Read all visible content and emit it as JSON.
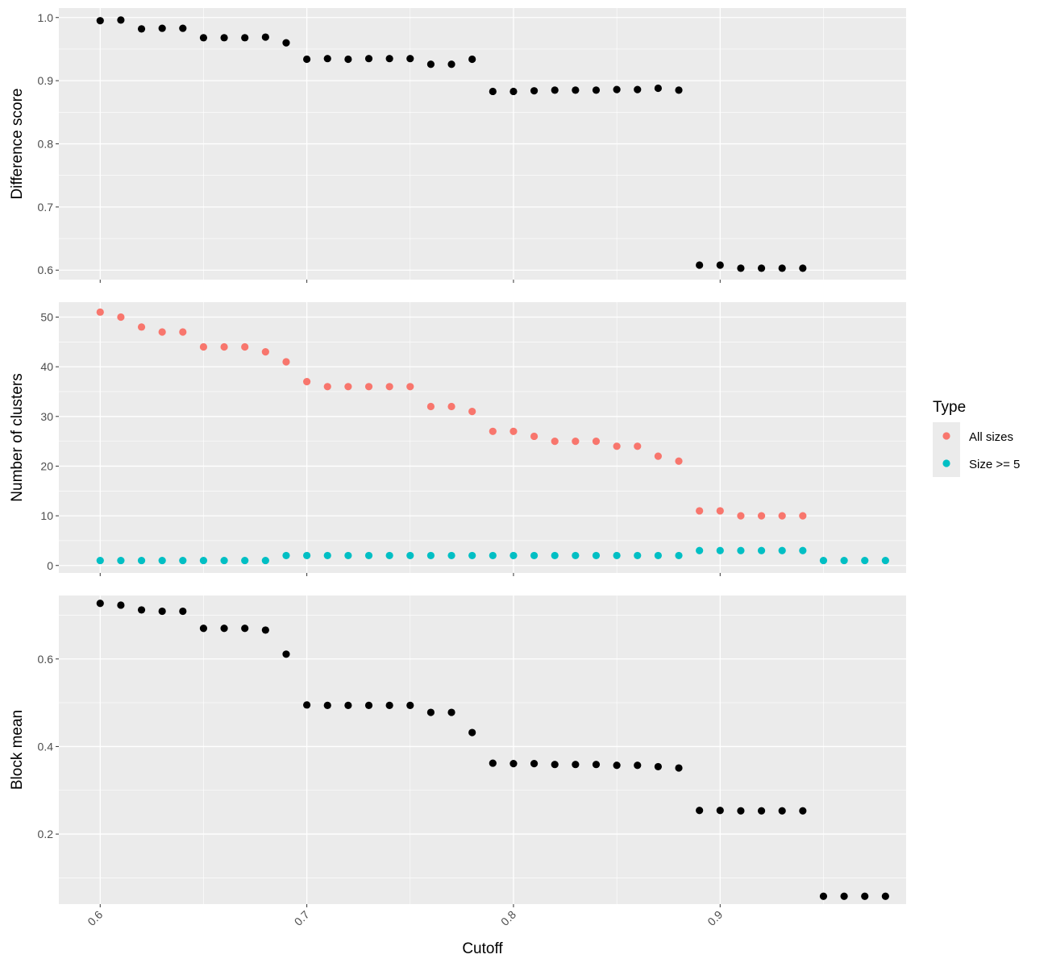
{
  "chart_data": {
    "type": "scatter",
    "xlabel": "Cutoff",
    "xlim": [
      0.58,
      0.99
    ],
    "x_ticks": [
      0.6,
      0.7,
      0.8,
      0.9
    ],
    "x_tick_labels": [
      "0.6",
      "0.7",
      "0.8",
      "0.9"
    ],
    "grid": true,
    "legend": {
      "title": "Type",
      "placement": "right",
      "entries": [
        {
          "label": "All sizes",
          "color": "#F8766D"
        },
        {
          "label": "Size >= 5",
          "color": "#00BFC4"
        }
      ]
    },
    "panels": [
      {
        "ylabel": "Difference score",
        "ylim": [
          0.585,
          1.015
        ],
        "y_ticks": [
          0.6,
          0.7,
          0.8,
          0.9,
          1.0
        ],
        "y_tick_labels": [
          "0.6",
          "0.7",
          "0.8",
          "0.9",
          "1.0"
        ],
        "series": [
          {
            "color": "#000000",
            "x": [
              0.6,
              0.61,
              0.62,
              0.63,
              0.64,
              0.65,
              0.66,
              0.67,
              0.68,
              0.69,
              0.7,
              0.71,
              0.72,
              0.73,
              0.74,
              0.75,
              0.76,
              0.77,
              0.78,
              0.79,
              0.8,
              0.81,
              0.82,
              0.83,
              0.84,
              0.85,
              0.86,
              0.87,
              0.88,
              0.89,
              0.9,
              0.91,
              0.92,
              0.93,
              0.94
            ],
            "values": [
              0.995,
              0.996,
              0.982,
              0.983,
              0.983,
              0.968,
              0.968,
              0.968,
              0.969,
              0.96,
              0.934,
              0.935,
              0.934,
              0.935,
              0.935,
              0.935,
              0.926,
              0.926,
              0.934,
              0.883,
              0.883,
              0.884,
              0.885,
              0.885,
              0.885,
              0.886,
              0.886,
              0.888,
              0.885,
              0.608,
              0.608,
              0.603,
              0.603,
              0.603,
              0.603
            ]
          }
        ]
      },
      {
        "ylabel": "Number of clusters",
        "ylim": [
          -1.5,
          53
        ],
        "y_ticks": [
          0,
          10,
          20,
          30,
          40,
          50
        ],
        "y_tick_labels": [
          "0",
          "10",
          "20",
          "30",
          "40",
          "50"
        ],
        "series": [
          {
            "name": "All sizes",
            "color": "#F8766D",
            "x": [
              0.6,
              0.61,
              0.62,
              0.63,
              0.64,
              0.65,
              0.66,
              0.67,
              0.68,
              0.69,
              0.7,
              0.71,
              0.72,
              0.73,
              0.74,
              0.75,
              0.76,
              0.77,
              0.78,
              0.79,
              0.8,
              0.81,
              0.82,
              0.83,
              0.84,
              0.85,
              0.86,
              0.87,
              0.88,
              0.89,
              0.9,
              0.91,
              0.92,
              0.93,
              0.94
            ],
            "values": [
              51,
              50,
              48,
              47,
              47,
              44,
              44,
              44,
              43,
              41,
              37,
              36,
              36,
              36,
              36,
              36,
              32,
              32,
              31,
              27,
              27,
              26,
              25,
              25,
              25,
              24,
              24,
              22,
              21,
              11,
              11,
              10,
              10,
              10,
              10
            ]
          },
          {
            "name": "Size >= 5",
            "color": "#00BFC4",
            "x": [
              0.6,
              0.61,
              0.62,
              0.63,
              0.64,
              0.65,
              0.66,
              0.67,
              0.68,
              0.69,
              0.7,
              0.71,
              0.72,
              0.73,
              0.74,
              0.75,
              0.76,
              0.77,
              0.78,
              0.79,
              0.8,
              0.81,
              0.82,
              0.83,
              0.84,
              0.85,
              0.86,
              0.87,
              0.88,
              0.89,
              0.9,
              0.91,
              0.92,
              0.93,
              0.94,
              0.95,
              0.96,
              0.97,
              0.98
            ],
            "values": [
              1,
              1,
              1,
              1,
              1,
              1,
              1,
              1,
              1,
              2,
              2,
              2,
              2,
              2,
              2,
              2,
              2,
              2,
              2,
              2,
              2,
              2,
              2,
              2,
              2,
              2,
              2,
              2,
              2,
              3,
              3,
              3,
              3,
              3,
              3,
              1,
              1,
              1,
              1
            ]
          }
        ]
      },
      {
        "ylabel": "Block mean",
        "ylim": [
          0.04,
          0.745
        ],
        "y_ticks": [
          0.2,
          0.4,
          0.6
        ],
        "y_tick_labels": [
          "0.2",
          "0.4",
          "0.6"
        ],
        "series": [
          {
            "color": "#000000",
            "x": [
              0.6,
              0.61,
              0.62,
              0.63,
              0.64,
              0.65,
              0.66,
              0.67,
              0.68,
              0.69,
              0.7,
              0.71,
              0.72,
              0.73,
              0.74,
              0.75,
              0.76,
              0.77,
              0.78,
              0.79,
              0.8,
              0.81,
              0.82,
              0.83,
              0.84,
              0.85,
              0.86,
              0.87,
              0.88,
              0.89,
              0.9,
              0.91,
              0.92,
              0.93,
              0.94,
              0.95,
              0.96,
              0.97,
              0.98
            ],
            "values": [
              0.727,
              0.723,
              0.712,
              0.709,
              0.709,
              0.67,
              0.67,
              0.67,
              0.666,
              0.611,
              0.495,
              0.494,
              0.494,
              0.494,
              0.494,
              0.494,
              0.478,
              0.478,
              0.432,
              0.362,
              0.361,
              0.361,
              0.359,
              0.359,
              0.359,
              0.357,
              0.357,
              0.354,
              0.351,
              0.254,
              0.254,
              0.253,
              0.253,
              0.253,
              0.253,
              0.058,
              0.058,
              0.058,
              0.058
            ]
          }
        ]
      }
    ]
  }
}
